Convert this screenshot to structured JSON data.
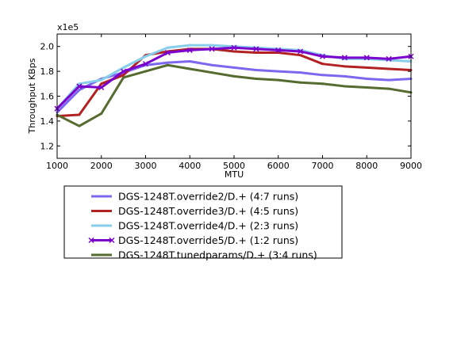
{
  "chart_data": {
    "type": "line",
    "title": "",
    "xlabel": "MTU",
    "ylabel": "Throughput KBps",
    "y_multiplier_label": "x1e5",
    "xlim": [
      1000,
      9000
    ],
    "ylim": [
      1.1,
      2.1
    ],
    "x_ticks": [
      1000,
      2000,
      3000,
      4000,
      5000,
      6000,
      7000,
      8000,
      9000
    ],
    "x_tick_labels": [
      "1000",
      "2000",
      "3000",
      "4000",
      "5000",
      "6000",
      "7000",
      "8000",
      "9000"
    ],
    "y_ticks": [
      1.2,
      1.4,
      1.6,
      1.8,
      2.0
    ],
    "y_tick_labels": [
      "1.2",
      "1.4",
      "1.6",
      "1.8",
      "2.0"
    ],
    "grid": false,
    "legend_position": "below",
    "x": [
      1000,
      1500,
      2000,
      2500,
      3000,
      3500,
      4000,
      4500,
      5000,
      5500,
      6000,
      6500,
      7000,
      7500,
      8000,
      8500,
      9000
    ],
    "series": [
      {
        "name": "DGS-1248T.override2/D.+ (4:7 runs)",
        "color": "#7b68ee",
        "marker": "none",
        "values": [
          1.47,
          1.65,
          1.74,
          1.79,
          1.85,
          1.87,
          1.88,
          1.85,
          1.83,
          1.81,
          1.8,
          1.79,
          1.77,
          1.76,
          1.74,
          1.73,
          1.74
        ]
      },
      {
        "name": "DGS-1248T.override3/D.+ (4:5 runs)",
        "color": "#b22222",
        "marker": "none",
        "values": [
          1.44,
          1.45,
          1.7,
          1.77,
          1.93,
          1.96,
          1.98,
          1.98,
          1.96,
          1.95,
          1.95,
          1.93,
          1.86,
          1.84,
          1.83,
          1.82,
          1.81
        ]
      },
      {
        "name": "DGS-1248T.override4/D.+ (2:3 runs)",
        "color": "#87ceeb",
        "marker": "none",
        "values": [
          1.5,
          1.7,
          1.73,
          1.83,
          1.92,
          1.99,
          2.01,
          2.01,
          2.0,
          1.99,
          1.98,
          1.97,
          1.93,
          1.9,
          1.9,
          1.89,
          1.88
        ]
      },
      {
        "name": "DGS-1248T.override5/D.+ (1:2 runs)",
        "color": "#7a00cc",
        "marker": "x",
        "values": [
          1.5,
          1.68,
          1.67,
          1.8,
          1.86,
          1.95,
          1.97,
          1.98,
          1.99,
          1.98,
          1.97,
          1.96,
          1.92,
          1.91,
          1.91,
          1.9,
          1.92
        ]
      },
      {
        "name": "DGS-1248T.tunedparams/D.+ (3:4 runs)",
        "color": "#556b2f",
        "marker": "none",
        "values": [
          1.45,
          1.36,
          1.46,
          1.75,
          1.8,
          1.85,
          1.82,
          1.79,
          1.76,
          1.74,
          1.73,
          1.71,
          1.7,
          1.68,
          1.67,
          1.66,
          1.63
        ]
      }
    ]
  }
}
